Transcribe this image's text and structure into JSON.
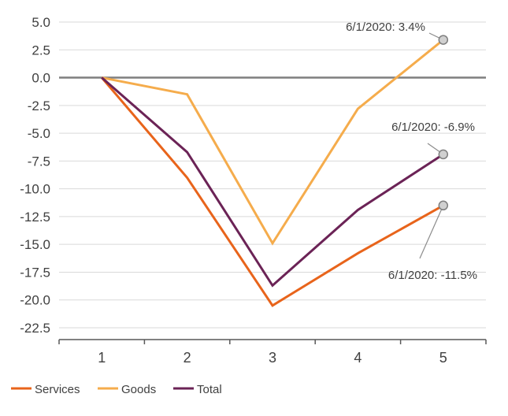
{
  "chart_data": {
    "type": "line",
    "x": [
      "1",
      "2",
      "3",
      "4",
      "5"
    ],
    "ylim": [
      -22.5,
      5.0
    ],
    "yticks": [
      "5.0",
      "2.5",
      "0.0",
      "-2.5",
      "-5.0",
      "-7.5",
      "-10.0",
      "-12.5",
      "-15.0",
      "-17.5",
      "-20.0",
      "-22.5"
    ],
    "grid": true,
    "legend_position": "bottom-left",
    "series": [
      {
        "name": "Services",
        "color": "#e8641b",
        "values": [
          0.0,
          -9.0,
          -20.5,
          -15.8,
          -11.5
        ]
      },
      {
        "name": "Goods",
        "color": "#f5ac4c",
        "values": [
          0.0,
          -1.5,
          -14.9,
          -2.8,
          3.4
        ]
      },
      {
        "name": "Total",
        "color": "#6b2356",
        "values": [
          0.0,
          -6.7,
          -18.7,
          -11.9,
          -6.9
        ]
      }
    ],
    "annotations": [
      {
        "text": "6/1/2020: 3.4%",
        "series": "Goods",
        "x": "5",
        "y": 3.4
      },
      {
        "text": "6/1/2020: -6.9%",
        "series": "Total",
        "x": "5",
        "y": -6.9
      },
      {
        "text": "6/1/2020: -11.5%",
        "series": "Services",
        "x": "5",
        "y": -11.5
      }
    ]
  }
}
